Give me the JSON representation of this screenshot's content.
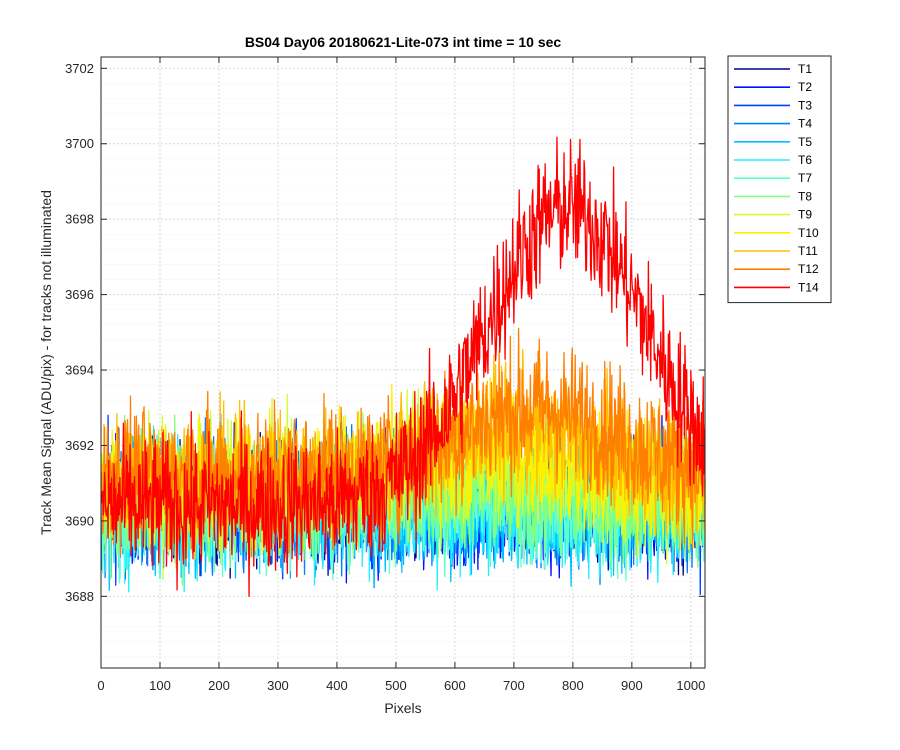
{
  "chart_data": {
    "type": "line",
    "title": "BS04 Day06 20180621-Lite-073 int time = 10 sec",
    "xlabel": "Pixels",
    "ylabel": "Track Mean Signal (ADU/pix) - for tracks not illuminated",
    "xlim": [
      0,
      1024
    ],
    "ylim": [
      3686.1,
      3702.3
    ],
    "xticks": [
      0,
      100,
      200,
      300,
      400,
      500,
      600,
      700,
      800,
      900,
      1000
    ],
    "yticks": [
      3688,
      3690,
      3692,
      3694,
      3696,
      3698,
      3700,
      3702
    ],
    "grid": true,
    "minor_grid": true,
    "legend_position": "outside-top-right",
    "series": [
      {
        "name": "T1",
        "color": "#00008f",
        "baseline": 3690.6,
        "peak_x": 600,
        "peak_add": 0.0,
        "noise": 1.1
      },
      {
        "name": "T2",
        "color": "#0010ff",
        "baseline": 3690.5,
        "peak_x": 600,
        "peak_add": 0.0,
        "noise": 1.1
      },
      {
        "name": "T3",
        "color": "#0040ff",
        "baseline": 3690.5,
        "peak_x": 600,
        "peak_add": 0.0,
        "noise": 1.1
      },
      {
        "name": "T4",
        "color": "#0080ff",
        "baseline": 3690.4,
        "peak_x": 600,
        "peak_add": 0.0,
        "noise": 1.1
      },
      {
        "name": "T5",
        "color": "#00bfff",
        "baseline": 3690.4,
        "peak_x": 600,
        "peak_add": 0.0,
        "noise": 1.1
      },
      {
        "name": "T6",
        "color": "#20f0ff",
        "baseline": 3690.3,
        "peak_x": 600,
        "peak_add": 0.0,
        "noise": 1.1
      },
      {
        "name": "T7",
        "color": "#60ffd0",
        "baseline": 3690.4,
        "peak_x": 600,
        "peak_add": 0.2,
        "noise": 1.1
      },
      {
        "name": "T8",
        "color": "#80ff80",
        "baseline": 3690.5,
        "peak_x": 600,
        "peak_add": 0.3,
        "noise": 1.1
      },
      {
        "name": "T9",
        "color": "#d0ff30",
        "baseline": 3690.9,
        "peak_x": 640,
        "peak_add": 0.6,
        "noise": 1.1
      },
      {
        "name": "T10",
        "color": "#ffef00",
        "baseline": 3691.0,
        "peak_x": 660,
        "peak_add": 0.9,
        "noise": 1.1
      },
      {
        "name": "T11",
        "color": "#ffbf00",
        "baseline": 3691.2,
        "peak_x": 700,
        "peak_add": 1.3,
        "noise": 1.1
      },
      {
        "name": "T12",
        "color": "#ff8000",
        "baseline": 3691.2,
        "peak_x": 740,
        "peak_add": 1.8,
        "noise": 1.2
      },
      {
        "name": "T14",
        "color": "#ff0000",
        "baseline": 3690.4,
        "peak_x": 790,
        "peak_add": 7.9,
        "noise": 1.2
      }
    ]
  }
}
